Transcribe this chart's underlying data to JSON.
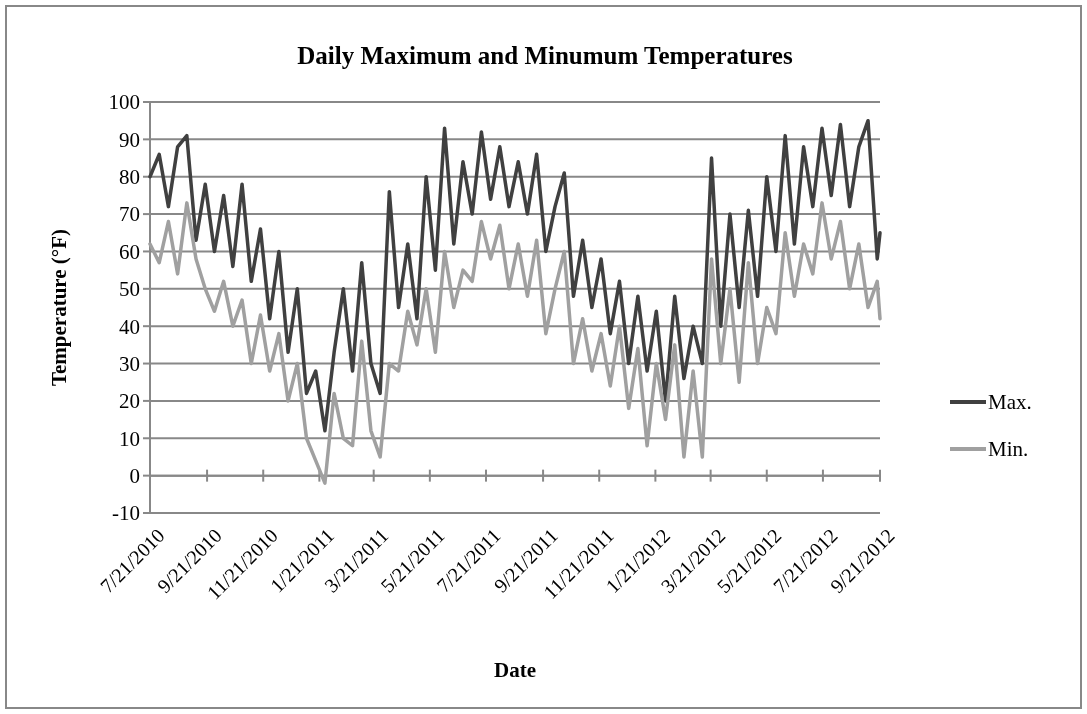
{
  "chart_data": {
    "type": "line",
    "title": "Daily Maximum and Minumum Temperatures",
    "xlabel": "Date",
    "ylabel": "Temperature (°F)",
    "x": [
      "2010-07-21",
      "2010-07-31",
      "2010-08-10",
      "2010-08-20",
      "2010-08-30",
      "2010-09-09",
      "2010-09-19",
      "2010-09-29",
      "2010-10-09",
      "2010-10-19",
      "2010-10-29",
      "2010-11-08",
      "2010-11-18",
      "2010-11-28",
      "2010-12-08",
      "2010-12-18",
      "2010-12-28",
      "2011-01-07",
      "2011-01-17",
      "2011-01-27",
      "2011-02-06",
      "2011-02-16",
      "2011-02-26",
      "2011-03-08",
      "2011-03-18",
      "2011-03-28",
      "2011-04-07",
      "2011-04-17",
      "2011-04-27",
      "2011-05-07",
      "2011-05-17",
      "2011-05-27",
      "2011-06-06",
      "2011-06-16",
      "2011-06-26",
      "2011-07-06",
      "2011-07-16",
      "2011-07-26",
      "2011-08-05",
      "2011-08-15",
      "2011-08-25",
      "2011-09-04",
      "2011-09-14",
      "2011-09-24",
      "2011-10-04",
      "2011-10-14",
      "2011-10-24",
      "2011-11-03",
      "2011-11-13",
      "2011-11-23",
      "2011-12-03",
      "2011-12-13",
      "2011-12-23",
      "2012-01-02",
      "2012-01-12",
      "2012-01-22",
      "2012-02-01",
      "2012-02-11",
      "2012-02-21",
      "2012-03-02",
      "2012-03-12",
      "2012-03-22",
      "2012-04-01",
      "2012-04-11",
      "2012-04-21",
      "2012-05-01",
      "2012-05-11",
      "2012-05-21",
      "2012-05-31",
      "2012-06-10",
      "2012-06-20",
      "2012-06-30",
      "2012-07-10",
      "2012-07-20",
      "2012-07-30",
      "2012-08-09",
      "2012-08-19",
      "2012-08-29",
      "2012-09-08",
      "2012-09-18",
      "2012-09-21"
    ],
    "series": [
      {
        "name": "Max.",
        "color": "#404040",
        "values": [
          80,
          86,
          72,
          88,
          91,
          63,
          78,
          60,
          75,
          56,
          78,
          52,
          66,
          42,
          60,
          33,
          50,
          22,
          28,
          12,
          33,
          50,
          28,
          57,
          30,
          22,
          76,
          45,
          62,
          42,
          80,
          55,
          93,
          62,
          84,
          70,
          92,
          74,
          88,
          72,
          84,
          70,
          86,
          60,
          72,
          81,
          48,
          63,
          45,
          58,
          38,
          52,
          30,
          48,
          28,
          44,
          20,
          48,
          26,
          40,
          30,
          85,
          40,
          70,
          45,
          71,
          48,
          80,
          60,
          91,
          62,
          88,
          72,
          93,
          75,
          94,
          72,
          88,
          95,
          58,
          65
        ]
      },
      {
        "name": "Min.",
        "color": "#a0a0a0",
        "values": [
          62,
          57,
          68,
          54,
          73,
          58,
          50,
          44,
          52,
          40,
          47,
          30,
          43,
          28,
          38,
          20,
          30,
          10,
          4,
          -2,
          22,
          10,
          8,
          36,
          12,
          5,
          30,
          28,
          44,
          35,
          50,
          33,
          60,
          45,
          55,
          52,
          68,
          58,
          67,
          50,
          62,
          48,
          63,
          38,
          50,
          60,
          30,
          42,
          28,
          38,
          24,
          40,
          18,
          34,
          8,
          30,
          15,
          35,
          5,
          28,
          5,
          58,
          30,
          50,
          25,
          57,
          30,
          45,
          38,
          65,
          48,
          62,
          54,
          73,
          58,
          68,
          50,
          62,
          45,
          52,
          42
        ]
      }
    ],
    "xlim": [
      "2010-07-21",
      "2012-09-21"
    ],
    "xticks": [
      {
        "value": "2010-07-21",
        "label": "7/21/2010"
      },
      {
        "value": "2010-09-21",
        "label": "9/21/2010"
      },
      {
        "value": "2010-11-21",
        "label": "11/21/2010"
      },
      {
        "value": "2011-01-21",
        "label": "1/21/2011"
      },
      {
        "value": "2011-03-21",
        "label": "3/21/2011"
      },
      {
        "value": "2011-05-21",
        "label": "5/21/2011"
      },
      {
        "value": "2011-07-21",
        "label": "7/21/2011"
      },
      {
        "value": "2011-09-21",
        "label": "9/21/2011"
      },
      {
        "value": "2011-11-21",
        "label": "11/21/2011"
      },
      {
        "value": "2012-01-21",
        "label": "1/21/2012"
      },
      {
        "value": "2012-03-21",
        "label": "3/21/2012"
      },
      {
        "value": "2012-05-21",
        "label": "5/21/2012"
      },
      {
        "value": "2012-07-21",
        "label": "7/21/2012"
      },
      {
        "value": "2012-09-21",
        "label": "9/21/2012"
      }
    ],
    "ylim": [
      -10,
      100
    ],
    "yticks": [
      -10,
      0,
      10,
      20,
      30,
      40,
      50,
      60,
      70,
      80,
      90,
      100
    ],
    "grid": "y",
    "legend": "right"
  }
}
